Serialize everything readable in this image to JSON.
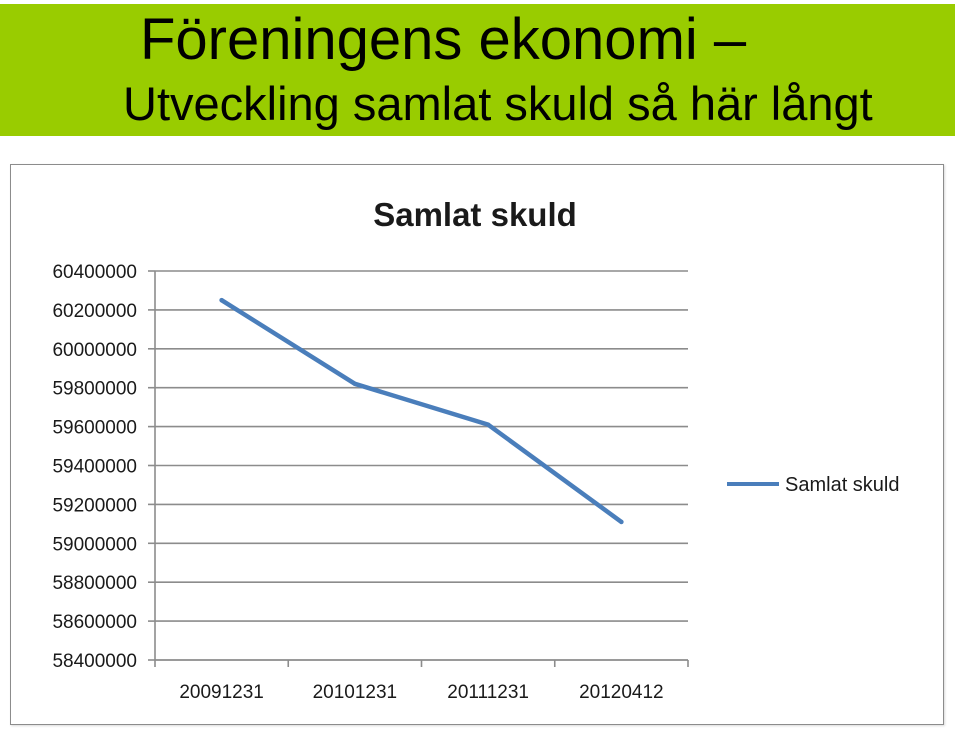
{
  "slide": {
    "title": "Föreningens ekonomi –",
    "subtitle": "Utveckling samlat skuld så här långt",
    "header_color": "#99cc00"
  },
  "chart_data": {
    "type": "line",
    "title": "Samlat skuld",
    "xlabel": "",
    "ylabel": "",
    "categories": [
      "20091231",
      "20101231",
      "20111231",
      "20120412"
    ],
    "series": [
      {
        "name": "Samlat skuld",
        "values": [
          60250000,
          59820000,
          59610000,
          59110000
        ],
        "color": "#4a7ebb"
      }
    ],
    "ylim": [
      58400000,
      60400000
    ],
    "yticks": [
      60400000,
      60200000,
      60000000,
      59800000,
      59600000,
      59400000,
      59200000,
      59000000,
      58800000,
      58600000,
      58400000
    ],
    "grid": true,
    "legend": "right"
  }
}
